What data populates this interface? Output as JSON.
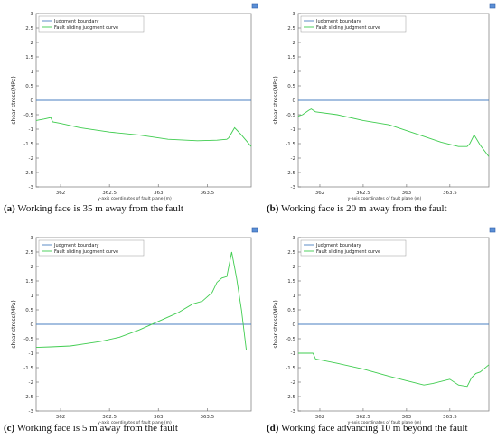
{
  "chart_data": [
    {
      "type": "line",
      "ylabel": "shear   stress(MPa)",
      "xlabel": "y-axis coordinates of fault plane (m)",
      "xlim": [
        361.75,
        363.95
      ],
      "ylim": [
        -3,
        3
      ],
      "yticks": [
        -3,
        -2.5,
        -2,
        -1.5,
        -1,
        -0.5,
        0,
        0.5,
        1,
        1.5,
        2,
        2.5,
        3
      ],
      "yticklabels": [
        "-3",
        "-2.5",
        "-2",
        "-1.5",
        "-1",
        "-0.5",
        "0",
        "0.5",
        "1",
        "1.5",
        "2",
        "2.5",
        "3"
      ],
      "xticks": [
        362,
        362.5,
        363,
        363.5
      ],
      "xticklabels": [
        "362",
        "362.5",
        "363",
        "363.5"
      ],
      "legend_position": "top-left",
      "series": [
        {
          "name": "Judgment boundary",
          "color": "#4a7fc1",
          "x": [
            361.75,
            363.95
          ],
          "y": [
            0,
            0
          ]
        },
        {
          "name": "Fault sliding judgment curve",
          "color": "#3fcc4f",
          "x": [
            361.75,
            361.83,
            361.9,
            361.92,
            362.0,
            362.2,
            362.5,
            362.8,
            363.1,
            363.4,
            363.6,
            363.7,
            363.72,
            363.78,
            363.85,
            363.95
          ],
          "y": [
            -0.7,
            -0.65,
            -0.6,
            -0.75,
            -0.8,
            -0.95,
            -1.1,
            -1.2,
            -1.35,
            -1.4,
            -1.38,
            -1.35,
            -1.3,
            -0.95,
            -1.2,
            -1.6
          ]
        }
      ]
    },
    {
      "type": "line",
      "ylabel": "shear   stress(MPa)",
      "xlabel": "y-axis coordinates of fault plane (m)",
      "xlim": [
        361.75,
        363.95
      ],
      "ylim": [
        -3,
        3
      ],
      "yticks": [
        -3,
        -2.5,
        -2,
        -1.5,
        -1,
        -0.5,
        0,
        0.5,
        1,
        1.5,
        2,
        2.5,
        3
      ],
      "yticklabels": [
        "-3",
        "-2.5",
        "-2",
        "-1.5",
        "-1",
        "-0.5",
        "0",
        "0.5",
        "1",
        "1.5",
        "2",
        "2.5",
        "3"
      ],
      "xticks": [
        362,
        362.5,
        363,
        363.5
      ],
      "xticklabels": [
        "362",
        "362.5",
        "363",
        "363.5"
      ],
      "legend_position": "top-left",
      "series": [
        {
          "name": "Judgment boundary",
          "color": "#4a7fc1",
          "x": [
            361.75,
            363.95
          ],
          "y": [
            0,
            0
          ]
        },
        {
          "name": "Fault sliding judgment curve",
          "color": "#3fcc4f",
          "x": [
            361.75,
            361.8,
            361.87,
            361.9,
            361.95,
            362.2,
            362.5,
            362.8,
            363.1,
            363.4,
            363.6,
            363.7,
            363.73,
            363.78,
            363.85,
            363.95
          ],
          "y": [
            -0.55,
            -0.5,
            -0.35,
            -0.3,
            -0.4,
            -0.5,
            -0.7,
            -0.85,
            -1.15,
            -1.45,
            -1.6,
            -1.6,
            -1.5,
            -1.2,
            -1.55,
            -1.95
          ]
        }
      ]
    },
    {
      "type": "line",
      "ylabel": "shear   stress(MPa)",
      "xlabel": "y-axis coordinates of fault plane (m)",
      "xlim": [
        361.75,
        363.95
      ],
      "ylim": [
        -3,
        3
      ],
      "yticks": [
        -3,
        -2.5,
        -2,
        -1.5,
        -1,
        -0.5,
        0,
        0.5,
        1,
        1.5,
        2,
        2.5,
        3
      ],
      "yticklabels": [
        "-3",
        "-2.5",
        "-2",
        "-1.5",
        "-1",
        "-0.5",
        "0",
        "0.5",
        "1",
        "1.5",
        "2",
        "2.5",
        "3"
      ],
      "xticks": [
        362,
        362.5,
        363,
        363.5
      ],
      "xticklabels": [
        "362",
        "362.5",
        "363",
        "363.5"
      ],
      "legend_position": "top-left",
      "series": [
        {
          "name": "Judgment boundary",
          "color": "#4a7fc1",
          "x": [
            361.75,
            363.95
          ],
          "y": [
            0,
            0
          ]
        },
        {
          "name": "Fault sliding judgment curve",
          "color": "#3fcc4f",
          "x": [
            361.75,
            361.9,
            362.1,
            362.4,
            362.6,
            362.8,
            363.0,
            363.2,
            363.35,
            363.45,
            363.55,
            363.6,
            363.65,
            363.7,
            363.75,
            363.8,
            363.85,
            363.9
          ],
          "y": [
            -0.8,
            -0.78,
            -0.75,
            -0.6,
            -0.45,
            -0.2,
            0.1,
            0.4,
            0.7,
            0.8,
            1.1,
            1.45,
            1.6,
            1.65,
            2.5,
            1.6,
            0.5,
            -0.9
          ]
        }
      ]
    },
    {
      "type": "line",
      "ylabel": "shear   stress(MPa)",
      "xlabel": "y-axis coordinates of fault plane (m)",
      "xlim": [
        361.75,
        363.95
      ],
      "ylim": [
        -3,
        3
      ],
      "yticks": [
        -3,
        -2.5,
        -2,
        -1.5,
        -1,
        -0.5,
        0,
        0.5,
        1,
        1.5,
        2,
        2.5,
        3
      ],
      "yticklabels": [
        "-3",
        "-2.5",
        "-2",
        "-1.5",
        "-1",
        "-0.5",
        "0",
        "0.5",
        "1",
        "1.5",
        "2",
        "2.5",
        "3"
      ],
      "xticks": [
        362,
        362.5,
        363,
        363.5
      ],
      "xticklabels": [
        "362",
        "362.5",
        "363",
        "363.5"
      ],
      "legend_position": "top-left",
      "series": [
        {
          "name": "Judgment boundary",
          "color": "#4a7fc1",
          "x": [
            361.75,
            363.95
          ],
          "y": [
            0,
            0
          ]
        },
        {
          "name": "Fault sliding judgment curve",
          "color": "#3fcc4f",
          "x": [
            361.75,
            361.85,
            361.92,
            361.95,
            362.2,
            362.5,
            362.8,
            363.0,
            363.2,
            363.3,
            363.5,
            363.6,
            363.7,
            363.75,
            363.8,
            363.85,
            363.95
          ],
          "y": [
            -1.0,
            -1.0,
            -1.0,
            -1.2,
            -1.35,
            -1.55,
            -1.8,
            -1.95,
            -2.1,
            -2.05,
            -1.9,
            -2.1,
            -2.15,
            -1.85,
            -1.7,
            -1.65,
            -1.4
          ]
        }
      ]
    }
  ],
  "captions": [
    {
      "letter": "(a)",
      "text": " Working face is 35 m away from the fault"
    },
    {
      "letter": "(b)",
      "text": " Working face is 20 m away from the fault"
    },
    {
      "letter": "(c)",
      "text": " Working face is 5 m away from the fault"
    },
    {
      "letter": "(d)",
      "text": " Working face advancing 10 m beyond the fault"
    }
  ]
}
